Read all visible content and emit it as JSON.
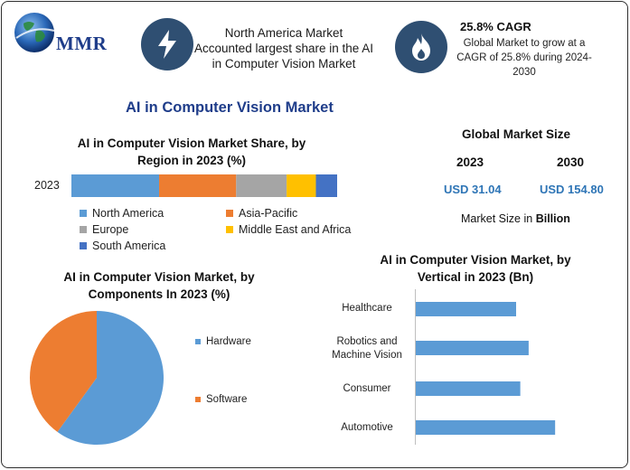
{
  "header": {
    "logo_text": "MMR",
    "box1_text_line1": "North America Market",
    "box1_text_line2": "Accounted largest share in the AI",
    "box1_text_line3": "in Computer Vision Market",
    "cagr_title": "25.8% CAGR",
    "cagr_line1": "Global Market to grow at a",
    "cagr_line2": "CAGR of 25.8% during 2024-",
    "cagr_line3": "2030"
  },
  "main_title": "AI in Computer Vision Market",
  "global_market": {
    "title": "Global Market Size",
    "year1": "2023",
    "year2": "2030",
    "value1": "USD 31.04",
    "value2": "USD 154.80",
    "note_prefix": "Market Size in",
    "note_unit": "Billion"
  },
  "colors": {
    "north_america": "#5b9bd5",
    "asia_pacific": "#ed7d31",
    "europe": "#a5a5a5",
    "middle_east_africa": "#ffc000",
    "south_america": "#4472c4",
    "hardware": "#5b9bd5",
    "software": "#ed7d31",
    "vertical_bar": "#5b9bd5",
    "badge": "#2f4f72"
  },
  "chart_data": [
    {
      "type": "bar",
      "orientation": "horizontal-stacked",
      "title_line1": "AI in Computer Vision Market Share, by",
      "title_line2": "Region in 2023 (%)",
      "categories": [
        "2023"
      ],
      "series": [
        {
          "name": "North America",
          "values": [
            33
          ]
        },
        {
          "name": "Asia-Pacific",
          "values": [
            29
          ]
        },
        {
          "name": "Europe",
          "values": [
            19
          ]
        },
        {
          "name": "Middle East and Africa",
          "values": [
            11
          ]
        },
        {
          "name": "South America",
          "values": [
            8
          ]
        }
      ],
      "legend": "bottom"
    },
    {
      "type": "pie",
      "title_line1": "AI in Computer Vision Market, by",
      "title_line2": "Components In 2023 (%)",
      "labels": [
        "Hardware",
        "Software"
      ],
      "values": [
        60,
        40
      ],
      "legend": "right"
    },
    {
      "type": "bar",
      "orientation": "horizontal",
      "title_line1": "AI in Computer Vision Market, by",
      "title_line2": "Vertical in 2023 (Bn)",
      "categories": [
        {
          "line1": "Healthcare",
          "line2": ""
        },
        {
          "line1": "Robotics and",
          "line2": "Machine Vision"
        },
        {
          "line1": "Consumer",
          "line2": ""
        },
        {
          "line1": "Automotive",
          "line2": ""
        }
      ],
      "values": [
        7.2,
        8.1,
        7.5,
        10.0
      ],
      "xlim": [
        0,
        12
      ]
    }
  ]
}
